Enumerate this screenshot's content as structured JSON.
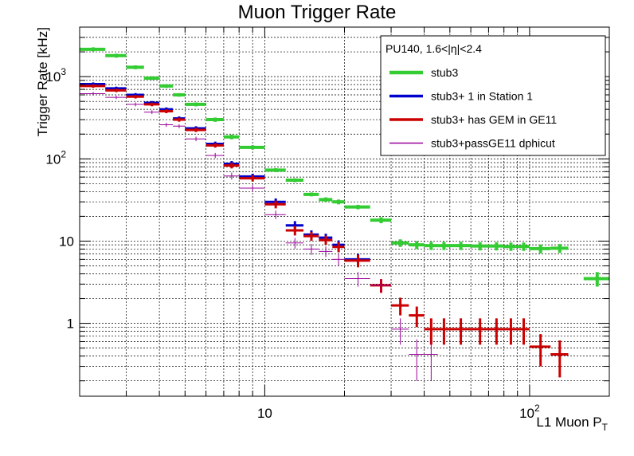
{
  "chart_data": {
    "type": "scatter",
    "title": "Muon Trigger Rate",
    "xlabel": "L1 Muon P",
    "xlabel_sub": "T",
    "ylabel": "Trigger Rate [kHz]",
    "xscale": "log",
    "yscale": "log",
    "xlim": [
      2,
      200
    ],
    "ylim": [
      0.13,
      4000
    ],
    "grid": true,
    "legend_position": "top-right",
    "legend_header": "PU140, 1.6<|η|<2.4",
    "x_tick_labels": [
      {
        "value": 10,
        "base": "10",
        "exp": ""
      },
      {
        "value": 100,
        "base": "10",
        "exp": "2"
      }
    ],
    "y_tick_labels": [
      {
        "value": 1,
        "base": "1",
        "exp": ""
      },
      {
        "value": 10,
        "base": "10",
        "exp": ""
      },
      {
        "value": 100,
        "base": "10",
        "exp": "2"
      },
      {
        "value": 1000,
        "base": "10",
        "exp": "3"
      }
    ],
    "series": [
      {
        "name": "stub3",
        "color": "#33cc33",
        "width": 4,
        "points": [
          [
            2.25,
            2150,
            0.25,
            120
          ],
          [
            2.75,
            1800,
            0.25,
            100
          ],
          [
            3.25,
            1300,
            0.25,
            70
          ],
          [
            3.75,
            960,
            0.25,
            50
          ],
          [
            4.25,
            770,
            0.25,
            40
          ],
          [
            4.75,
            600,
            0.25,
            30
          ],
          [
            5.5,
            460,
            0.5,
            25
          ],
          [
            6.5,
            300,
            0.5,
            18
          ],
          [
            7.5,
            185,
            0.5,
            12
          ],
          [
            9,
            138,
            1,
            8
          ],
          [
            11,
            73,
            1,
            4
          ],
          [
            13,
            55,
            1,
            3
          ],
          [
            15,
            37,
            1,
            2
          ],
          [
            17,
            32,
            1,
            2
          ],
          [
            19,
            30,
            1,
            2
          ],
          [
            22.5,
            26,
            2.5,
            1.6
          ],
          [
            27.5,
            18,
            2.5,
            1.5
          ],
          [
            32.5,
            9.5,
            2.5,
            1
          ],
          [
            37.5,
            9,
            2.5,
            1
          ],
          [
            42.5,
            8.8,
            2.5,
            1
          ],
          [
            47.5,
            8.8,
            2.5,
            1
          ],
          [
            55,
            8.8,
            5,
            1
          ],
          [
            65,
            8.7,
            5,
            1
          ],
          [
            75,
            8.7,
            5,
            1
          ],
          [
            85,
            8.6,
            5,
            1
          ],
          [
            95,
            8.6,
            5,
            1
          ],
          [
            110,
            8.1,
            10,
            1
          ],
          [
            130,
            8.2,
            10,
            1
          ],
          [
            180,
            3.5,
            20,
            0.7
          ]
        ]
      },
      {
        "name": "stub3+ 1 in Station 1",
        "color": "#0000cc",
        "width": 3,
        "points": [
          [
            2.25,
            810,
            0.25,
            40
          ],
          [
            2.75,
            720,
            0.25,
            35
          ],
          [
            3.25,
            600,
            0.25,
            30
          ],
          [
            3.75,
            480,
            0.25,
            25
          ],
          [
            4.25,
            400,
            0.25,
            22
          ],
          [
            4.75,
            310,
            0.25,
            18
          ],
          [
            5.5,
            235,
            0.5,
            14
          ],
          [
            6.5,
            152,
            0.5,
            10
          ],
          [
            7.5,
            87,
            0.5,
            7
          ],
          [
            9,
            61,
            1,
            5
          ],
          [
            11,
            30,
            1,
            3
          ],
          [
            13,
            15.5,
            1,
            2
          ],
          [
            15,
            12,
            1,
            1.5
          ],
          [
            17,
            11,
            1,
            1.3
          ],
          [
            19,
            9,
            1,
            1.2
          ],
          [
            22.5,
            6,
            2.5,
            1
          ]
        ]
      },
      {
        "name": "stub3+ has GEM in GE11",
        "color": "#cc0000",
        "width": 3,
        "points": [
          [
            2.25,
            770,
            0.25,
            38
          ],
          [
            2.75,
            680,
            0.25,
            33
          ],
          [
            3.25,
            570,
            0.25,
            28
          ],
          [
            3.75,
            460,
            0.25,
            24
          ],
          [
            4.25,
            380,
            0.25,
            21
          ],
          [
            4.75,
            300,
            0.25,
            17
          ],
          [
            5.5,
            225,
            0.5,
            13
          ],
          [
            6.5,
            146,
            0.5,
            9
          ],
          [
            7.5,
            83,
            0.5,
            6.5
          ],
          [
            9,
            58,
            1,
            5
          ],
          [
            11,
            28,
            1,
            3
          ],
          [
            13,
            13.5,
            1,
            1.8
          ],
          [
            15,
            11.5,
            1,
            1.4
          ],
          [
            17,
            10.3,
            1,
            1.3
          ],
          [
            19,
            8.5,
            1,
            1.2
          ],
          [
            22.5,
            5.8,
            2.5,
            1
          ],
          [
            27.5,
            2.9,
            2.5,
            0.55
          ],
          [
            32.5,
            1.65,
            2.5,
            0.4
          ],
          [
            37.5,
            1.25,
            2.5,
            0.35
          ],
          [
            42.5,
            0.85,
            2.5,
            0.3
          ],
          [
            47.5,
            0.85,
            2.5,
            0.3
          ],
          [
            55,
            0.85,
            5,
            0.3
          ],
          [
            65,
            0.85,
            5,
            0.3
          ],
          [
            75,
            0.85,
            5,
            0.3
          ],
          [
            85,
            0.85,
            5,
            0.3
          ],
          [
            95,
            0.85,
            5,
            0.3
          ],
          [
            110,
            0.52,
            10,
            0.22
          ],
          [
            130,
            0.42,
            10,
            0.2
          ]
        ]
      },
      {
        "name": "stub3+passGE11 dphicut",
        "color": "#990099",
        "width": 1,
        "points": [
          [
            2.25,
            620,
            0.25,
            30
          ],
          [
            2.75,
            560,
            0.25,
            28
          ],
          [
            3.25,
            460,
            0.25,
            25
          ],
          [
            3.75,
            370,
            0.25,
            20
          ],
          [
            4.25,
            260,
            0.25,
            15
          ],
          [
            4.75,
            250,
            0.25,
            14
          ],
          [
            5.5,
            175,
            0.5,
            11
          ],
          [
            6.5,
            110,
            0.5,
            8
          ],
          [
            7.5,
            62,
            0.5,
            6
          ],
          [
            9,
            44,
            1,
            4
          ],
          [
            11,
            21,
            1,
            2.5
          ],
          [
            13,
            9.5,
            1,
            1.4
          ],
          [
            15,
            8,
            1,
            1.2
          ],
          [
            17,
            7.5,
            1,
            1.1
          ],
          [
            19,
            6,
            1,
            1
          ],
          [
            22.5,
            3.5,
            2.5,
            0.7
          ],
          [
            27.5,
            2.9,
            2.5,
            0.55
          ],
          [
            32.5,
            0.85,
            2.5,
            0.3
          ],
          [
            37.5,
            0.42,
            2.5,
            0.22
          ],
          [
            42.5,
            0.42,
            2.5,
            0.22
          ]
        ]
      }
    ]
  }
}
